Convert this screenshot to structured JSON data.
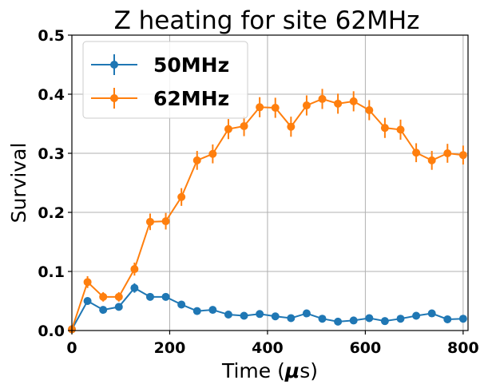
{
  "chart_data": {
    "type": "line",
    "title": "Z heating for site 62MHz",
    "xlabel": "Time (",
    "xlabel_mu": "μ",
    "xlabel_tail": "s)",
    "ylabel": "Survival",
    "xlim": [
      0,
      810
    ],
    "ylim": [
      0,
      0.5
    ],
    "xticks": [
      0,
      200,
      400,
      600,
      800
    ],
    "yticks": [
      0.0,
      0.1,
      0.2,
      0.3,
      0.4,
      0.5
    ],
    "xtick_labels": [
      "0",
      "200",
      "400",
      "600",
      "800"
    ],
    "ytick_labels": [
      "0.0",
      "0.1",
      "0.2",
      "0.3",
      "0.4",
      "0.5"
    ],
    "grid": true,
    "legend_position": "top-left",
    "x": [
      0,
      32,
      64,
      96,
      128,
      160,
      192,
      224,
      256,
      288,
      320,
      352,
      384,
      416,
      448,
      480,
      512,
      544,
      576,
      608,
      640,
      672,
      704,
      736,
      768,
      800
    ],
    "series": [
      {
        "name": "50MHz",
        "color": "#1f77b4",
        "values": [
          0.002,
          0.05,
          0.035,
          0.04,
          0.072,
          0.057,
          0.057,
          0.044,
          0.033,
          0.035,
          0.027,
          0.025,
          0.028,
          0.024,
          0.021,
          0.029,
          0.02,
          0.015,
          0.017,
          0.021,
          0.016,
          0.02,
          0.025,
          0.029,
          0.019,
          0.02
        ],
        "errors": [
          0.002,
          0.006,
          0.005,
          0.005,
          0.008,
          0.006,
          0.006,
          0.006,
          0.005,
          0.005,
          0.005,
          0.004,
          0.005,
          0.004,
          0.004,
          0.005,
          0.004,
          0.004,
          0.004,
          0.004,
          0.004,
          0.004,
          0.005,
          0.005,
          0.004,
          0.004
        ]
      },
      {
        "name": "62MHz",
        "color": "#ff7f0e",
        "values": [
          0.002,
          0.082,
          0.057,
          0.057,
          0.104,
          0.184,
          0.185,
          0.226,
          0.288,
          0.299,
          0.341,
          0.346,
          0.378,
          0.377,
          0.345,
          0.381,
          0.392,
          0.384,
          0.388,
          0.373,
          0.343,
          0.34,
          0.301,
          0.288,
          0.3,
          0.297
        ]
      }
    ],
    "errors_62": [
      0.002,
      0.01,
      0.008,
      0.008,
      0.011,
      0.014,
      0.014,
      0.015,
      0.016,
      0.016,
      0.017,
      0.017,
      0.017,
      0.017,
      0.017,
      0.017,
      0.017,
      0.017,
      0.017,
      0.017,
      0.017,
      0.017,
      0.016,
      0.016,
      0.016,
      0.016
    ]
  }
}
